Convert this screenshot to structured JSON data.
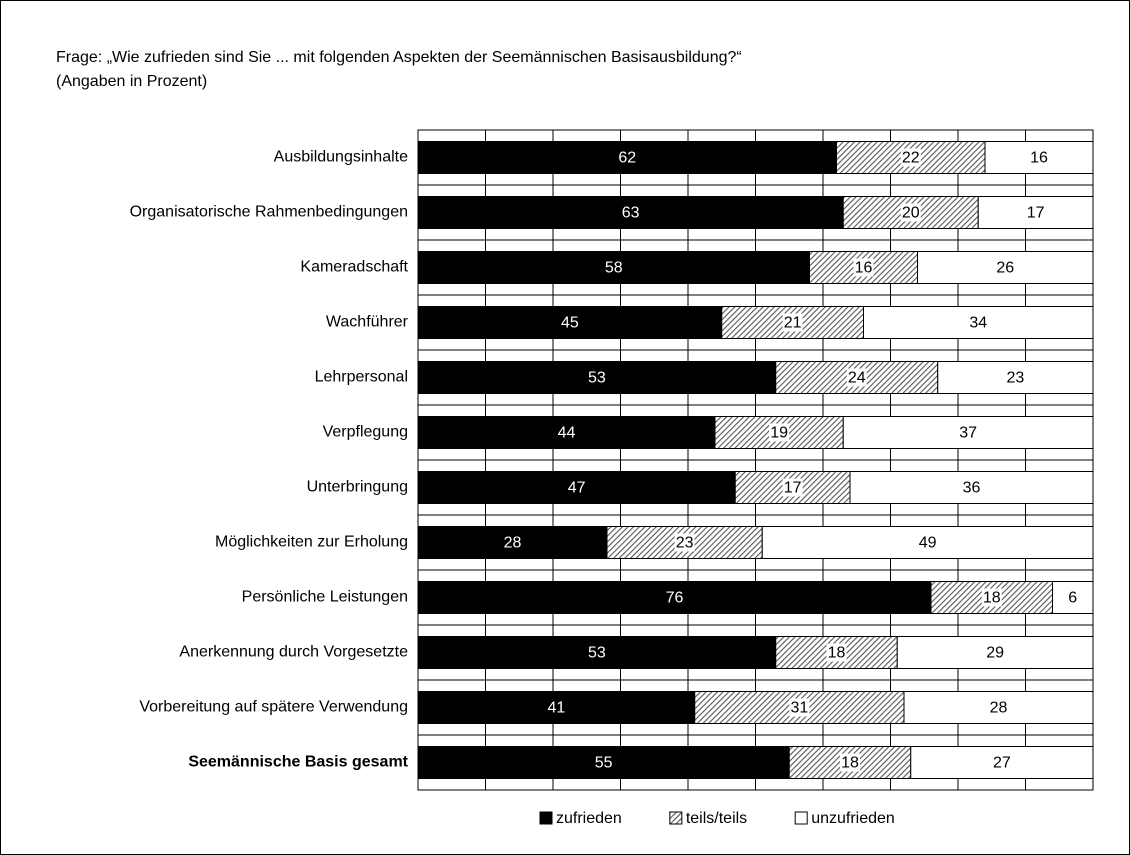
{
  "chart_data": {
    "type": "stacked_barh",
    "title": "Frage: „Wie zufrieden sind Sie ... mit folgenden Aspekten der Seemännischen Basisausbildung?“",
    "subtitle": "(Angaben in Prozent)",
    "categories": [
      "Ausbildungsinhalte",
      "Organisatorische Rahmenbedingungen",
      "Kameradschaft",
      "Wachführer",
      "Lehrpersonal",
      "Verpflegung",
      "Unterbringung",
      "Möglichkeiten zur Erholung",
      "Persönliche Leistungen",
      "Anerkennung durch Vorgesetzte",
      "Vorbereitung auf spätere Verwendung",
      "Seemännische Basis gesamt"
    ],
    "series": [
      {
        "name": "zufrieden",
        "color": "#000000",
        "values": [
          62,
          63,
          58,
          45,
          53,
          44,
          47,
          28,
          76,
          53,
          41,
          55
        ]
      },
      {
        "name": "teils/teils",
        "color": "#808080",
        "values": [
          22,
          20,
          16,
          21,
          24,
          19,
          17,
          23,
          18,
          18,
          31,
          18
        ]
      },
      {
        "name": "unzufrieden",
        "color": "#ffffff",
        "values": [
          16,
          17,
          26,
          34,
          23,
          37,
          36,
          49,
          6,
          29,
          28,
          27
        ]
      }
    ],
    "xlim": [
      0,
      100
    ],
    "xticks": [
      0,
      10,
      20,
      30,
      40,
      50,
      60,
      70,
      80,
      90,
      100
    ],
    "grid": true,
    "legend": "bottom"
  }
}
